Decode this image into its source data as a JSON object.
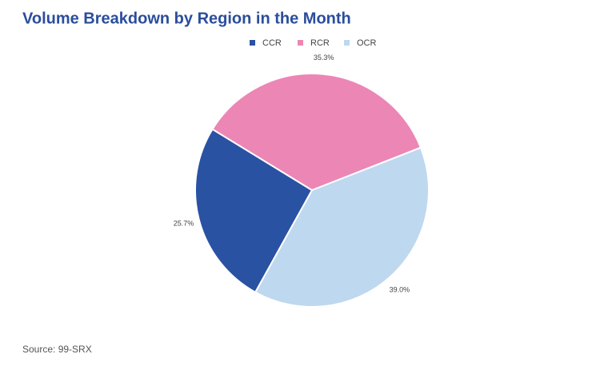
{
  "chart_data": {
    "type": "pie",
    "title": "Volume Breakdown by Region in the Month",
    "categories": [
      "CCR",
      "RCR",
      "OCR"
    ],
    "values": [
      25.7,
      35.3,
      39.0
    ],
    "value_labels": [
      "25.7%",
      "35.3%",
      "39.0%"
    ],
    "colors": [
      "#2a52a3",
      "#ec86b5",
      "#bed8ef"
    ],
    "legend": "top",
    "source": "Source: 99-SRX"
  }
}
